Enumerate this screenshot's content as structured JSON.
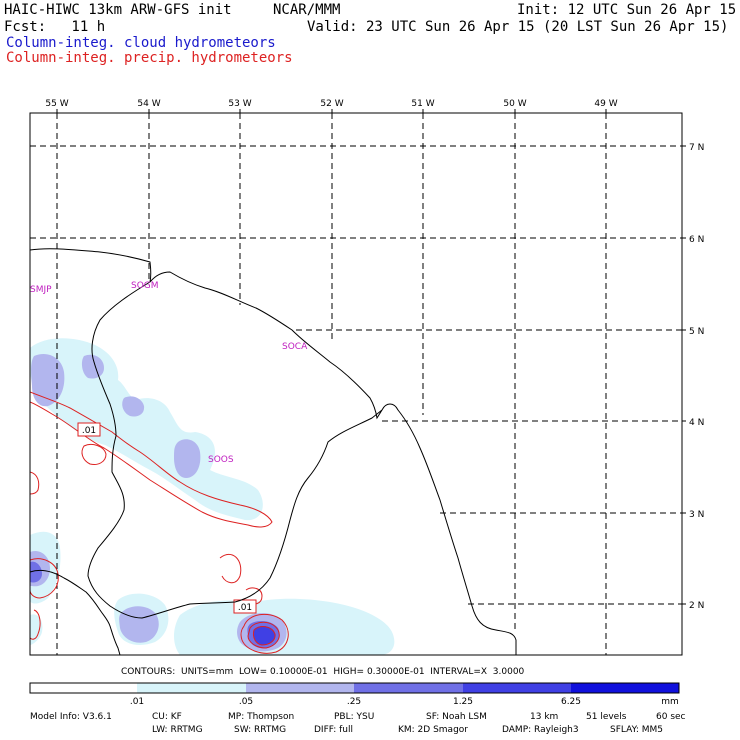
{
  "header": {
    "title_left": "HAIC-HIWC 13km ARW-GFS init",
    "title_mid": "NCAR/MMM",
    "init_line": "Init: 12 UTC Sun 26 Apr 15",
    "fcst_line": "Fcst:   11 h",
    "valid_line": "Valid: 23 UTC Sun 26 Apr 15 (20 LST Sun 26 Apr 15)",
    "field_cloud": "Column-integ. cloud hydrometeors",
    "field_precip": "Column-integ. precip. hydrometeors"
  },
  "map": {
    "lon_labels": [
      "55 W",
      "54 W",
      "53 W",
      "52 W",
      "51 W",
      "50 W",
      "49 W"
    ],
    "lat_labels": [
      "7 N",
      "6 N",
      "5 N",
      "4 N",
      "3 N",
      "2 N"
    ],
    "stations": [
      "SMJP",
      "SOGM",
      "SOCA",
      "SOOS"
    ],
    "contour_labels": [
      ".01",
      ".01"
    ],
    "colors": {
      "cloud_025": "#d8f4fa",
      "cloud_25": "#b2b6ee",
      "cloud_125": "#7070e6",
      "cloud_625": "#2020dc",
      "precip": "#dd2222",
      "coast": "#000000",
      "station": "#c020c0"
    }
  },
  "contours_info": "CONTOURS:  UNITS=mm  LOW= 0.10000E-01  HIGH= 0.30000E-01  INTERVAL=X  3.0000",
  "colorbar": {
    "ticks": [
      ".01",
      ".05",
      ".25",
      "1.25",
      "6.25"
    ],
    "units": "mm",
    "colors": [
      "#ffffff",
      "#d8f4fa",
      "#b2b6ee",
      "#7070e6",
      "#4040e4",
      "#1010dc"
    ]
  },
  "model_info": {
    "line1": {
      "model": "Model Info: V3.6.1",
      "cu": "CU: KF",
      "mp": "MP: Thompson",
      "pbl": "PBL: YSU",
      "sf": "SF: Noah LSM",
      "res": "13 km",
      "levels": "51 levels",
      "dt": "60 sec"
    },
    "line2": {
      "lw": "LW: RRTMG",
      "sw": "SW: RRTMG",
      "diff": "DIFF: full",
      "km": "KM: 2D Smagor",
      "damp": "DAMP: Rayleigh3",
      "sflay": "SFLAY: MM5"
    }
  }
}
